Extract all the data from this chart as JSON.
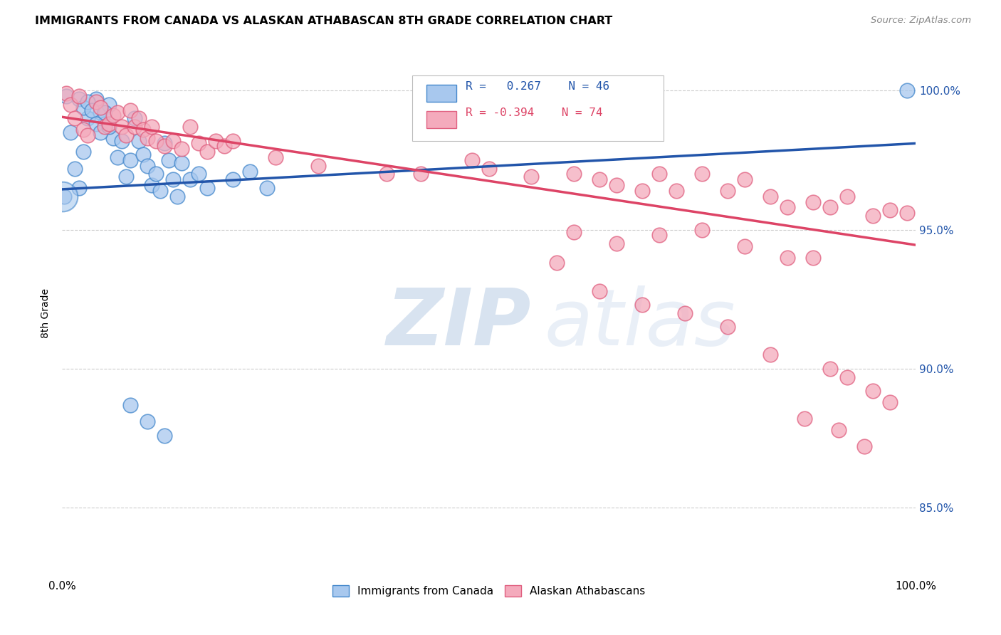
{
  "title": "IMMIGRANTS FROM CANADA VS ALASKAN ATHABASCAN 8TH GRADE CORRELATION CHART",
  "source": "Source: ZipAtlas.com",
  "ylabel": "8th Grade",
  "ytick_labels": [
    "85.0%",
    "90.0%",
    "95.0%",
    "100.0%"
  ],
  "ytick_values": [
    0.85,
    0.9,
    0.95,
    1.0
  ],
  "xlim": [
    0.0,
    1.0
  ],
  "ylim": [
    0.825,
    1.015
  ],
  "legend_labels": [
    "Immigrants from Canada",
    "Alaskan Athabascans"
  ],
  "blue_R": 0.267,
  "blue_N": 46,
  "pink_R": -0.394,
  "pink_N": 74,
  "blue_color": "#A8C8EE",
  "pink_color": "#F4AABC",
  "blue_edge_color": "#4488CC",
  "pink_edge_color": "#E06080",
  "blue_line_color": "#2255AA",
  "pink_line_color": "#DD4466",
  "blue_trend": [
    0.9645,
    0.981
  ],
  "pink_trend": [
    0.9905,
    0.9445
  ],
  "blue_points_x": [
    0.005,
    0.01,
    0.015,
    0.02,
    0.025,
    0.03,
    0.04,
    0.045,
    0.05,
    0.055,
    0.06,
    0.065,
    0.07,
    0.075,
    0.08,
    0.085,
    0.09,
    0.095,
    0.1,
    0.105,
    0.11,
    0.115,
    0.12,
    0.125,
    0.13,
    0.135,
    0.14,
    0.15,
    0.16,
    0.17,
    0.02,
    0.025,
    0.03,
    0.035,
    0.04,
    0.045,
    0.05,
    0.055,
    0.2,
    0.22,
    0.24,
    0.08,
    0.1,
    0.12,
    0.99,
    0.002
  ],
  "blue_points_y": [
    0.998,
    0.985,
    0.972,
    0.965,
    0.978,
    0.99,
    0.997,
    0.992,
    0.988,
    0.995,
    0.983,
    0.976,
    0.982,
    0.969,
    0.975,
    0.99,
    0.982,
    0.977,
    0.973,
    0.966,
    0.97,
    0.964,
    0.981,
    0.975,
    0.968,
    0.962,
    0.974,
    0.968,
    0.97,
    0.965,
    0.997,
    0.994,
    0.996,
    0.993,
    0.988,
    0.985,
    0.992,
    0.987,
    0.968,
    0.971,
    0.965,
    0.887,
    0.881,
    0.876,
    1.0,
    0.962
  ],
  "blue_large_x": [
    0.001
  ],
  "blue_large_y": [
    0.962
  ],
  "pink_points_x": [
    0.005,
    0.01,
    0.015,
    0.02,
    0.025,
    0.03,
    0.04,
    0.045,
    0.05,
    0.055,
    0.06,
    0.065,
    0.07,
    0.075,
    0.08,
    0.085,
    0.09,
    0.095,
    0.1,
    0.105,
    0.11,
    0.12,
    0.13,
    0.14,
    0.15,
    0.16,
    0.17,
    0.18,
    0.19,
    0.2,
    0.25,
    0.3,
    0.38,
    0.42,
    0.48,
    0.5,
    0.55,
    0.6,
    0.63,
    0.65,
    0.68,
    0.7,
    0.72,
    0.75,
    0.78,
    0.8,
    0.83,
    0.85,
    0.88,
    0.9,
    0.92,
    0.95,
    0.97,
    0.99,
    0.6,
    0.65,
    0.7,
    0.75,
    0.8,
    0.85,
    0.88,
    0.9,
    0.92,
    0.95,
    0.97,
    0.58,
    0.63,
    0.68,
    0.73,
    0.78,
    0.83,
    0.87,
    0.91,
    0.94
  ],
  "pink_points_y": [
    0.999,
    0.995,
    0.99,
    0.998,
    0.986,
    0.984,
    0.996,
    0.994,
    0.987,
    0.988,
    0.991,
    0.992,
    0.987,
    0.984,
    0.993,
    0.987,
    0.99,
    0.986,
    0.983,
    0.987,
    0.982,
    0.98,
    0.982,
    0.979,
    0.987,
    0.981,
    0.978,
    0.982,
    0.98,
    0.982,
    0.976,
    0.973,
    0.97,
    0.97,
    0.975,
    0.972,
    0.969,
    0.97,
    0.968,
    0.966,
    0.964,
    0.97,
    0.964,
    0.97,
    0.964,
    0.968,
    0.962,
    0.958,
    0.96,
    0.958,
    0.962,
    0.955,
    0.957,
    0.956,
    0.949,
    0.945,
    0.948,
    0.95,
    0.944,
    0.94,
    0.94,
    0.9,
    0.897,
    0.892,
    0.888,
    0.938,
    0.928,
    0.923,
    0.92,
    0.915,
    0.905,
    0.882,
    0.878,
    0.872
  ]
}
